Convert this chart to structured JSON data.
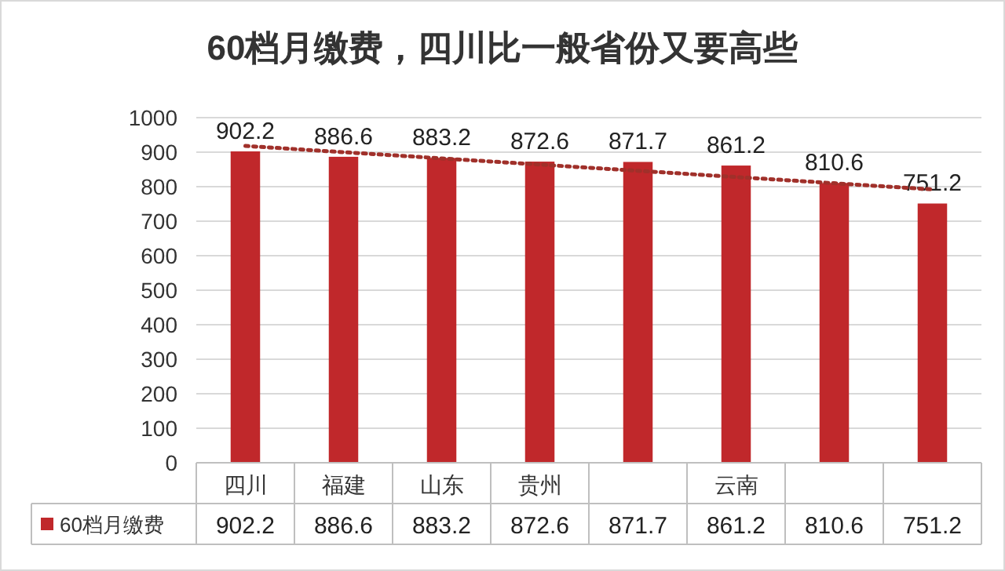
{
  "chart_data": {
    "type": "bar",
    "title": "60档月缴费，四川比一般省份又要高些",
    "categories": [
      "四川",
      "福建",
      "山东",
      "贵州",
      null,
      "云南",
      null,
      null
    ],
    "series": [
      {
        "name": "60档月缴费",
        "color": "#c0282b",
        "values": [
          902.2,
          886.6,
          883.2,
          872.6,
          871.7,
          861.2,
          810.6,
          751.2
        ],
        "value_labels": [
          "902.2",
          "886.6",
          "883.2",
          "872.6",
          "871.7",
          "861.2",
          "810.6",
          "751.2"
        ]
      },
      {
        "type": "line",
        "line_style": "dotted",
        "color": "#a0302a",
        "values": [
          918,
          900,
          882,
          864,
          846,
          828,
          810,
          792
        ]
      }
    ],
    "ylim": [
      0,
      1000
    ],
    "yticks": [
      0,
      100,
      200,
      300,
      400,
      500,
      600,
      700,
      800,
      900,
      1000
    ],
    "grid": "y",
    "legend": "bottom"
  }
}
